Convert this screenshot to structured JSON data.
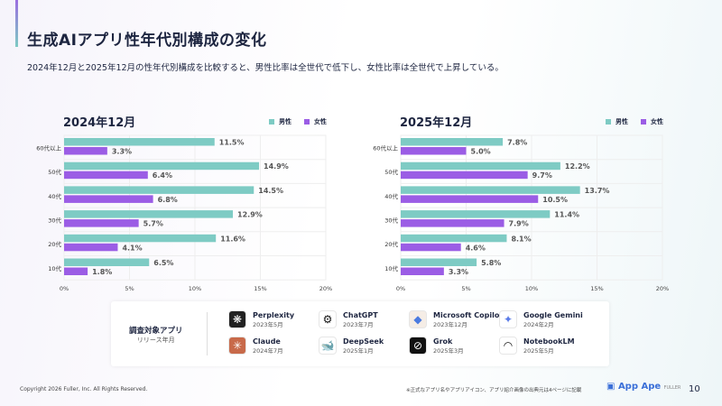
{
  "title": "生成AIアプリ性年代別構成の変化",
  "subtitle": "2024年12月と2025年12月の性年代別構成を比較すると、男性比率は全世代で低下し、女性比率は全世代で上昇している。",
  "chart_data": [
    {
      "type": "bar",
      "orientation": "horizontal",
      "title": "2024年12月",
      "categories": [
        "60代以上",
        "50代",
        "40代",
        "30代",
        "20代",
        "10代"
      ],
      "series": [
        {
          "name": "男性",
          "color": "#7ecbc4",
          "values": [
            11.5,
            14.9,
            14.5,
            12.9,
            11.6,
            6.5
          ]
        },
        {
          "name": "女性",
          "color": "#9b5de5",
          "values": [
            3.3,
            6.4,
            6.8,
            5.7,
            4.1,
            1.8
          ]
        }
      ],
      "xlim": [
        0,
        20
      ],
      "xticks": [
        "0%",
        "5%",
        "10%",
        "15%",
        "20%"
      ],
      "legend": "top-right",
      "grid": true
    },
    {
      "type": "bar",
      "orientation": "horizontal",
      "title": "2025年12月",
      "categories": [
        "60代以上",
        "50代",
        "40代",
        "30代",
        "20代",
        "10代"
      ],
      "series": [
        {
          "name": "男性",
          "color": "#7ecbc4",
          "values": [
            7.8,
            12.2,
            13.7,
            11.4,
            8.1,
            5.8
          ]
        },
        {
          "name": "女性",
          "color": "#9b5de5",
          "values": [
            5.0,
            9.7,
            10.5,
            7.9,
            4.6,
            3.3
          ]
        }
      ],
      "xlim": [
        0,
        20
      ],
      "xticks": [
        "0%",
        "5%",
        "10%",
        "15%",
        "20%"
      ],
      "legend": "top-right",
      "grid": true
    }
  ],
  "apps_panel": {
    "label": "調査対象アプリ",
    "sublabel": "リリース年月",
    "apps": [
      {
        "name": "Perplexity",
        "date": "2023年5月",
        "icon": "perplexity-icon"
      },
      {
        "name": "ChatGPT",
        "date": "2023年7月",
        "icon": "chatgpt-icon"
      },
      {
        "name": "Microsoft Copilot",
        "date": "2023年12月",
        "icon": "copilot-icon"
      },
      {
        "name": "Google Gemini",
        "date": "2024年2月",
        "icon": "gemini-icon"
      },
      {
        "name": "Claude",
        "date": "2024年7月",
        "icon": "claude-icon"
      },
      {
        "name": "DeepSeek",
        "date": "2025年1月",
        "icon": "deepseek-icon"
      },
      {
        "name": "Grok",
        "date": "2025年3月",
        "icon": "grok-icon"
      },
      {
        "name": "NotebookLM",
        "date": "2025年5月",
        "icon": "notebooklm-icon"
      }
    ]
  },
  "footer": {
    "copyright": "Copyright 2026 Fuller, Inc. All Rights Reserved.",
    "note": "※正式なアプリ名やアプリアイコン、アプリ紹介画像の出典元は4ページに記載",
    "logo": "App Ape",
    "logo_sub": "FULLER",
    "page": "10"
  }
}
